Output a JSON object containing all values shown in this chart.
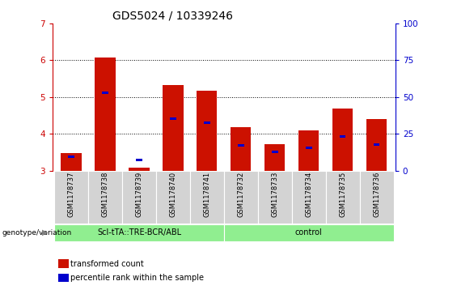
{
  "title": "GDS5024 / 10339246",
  "samples": [
    "GSM1178737",
    "GSM1178738",
    "GSM1178739",
    "GSM1178740",
    "GSM1178741",
    "GSM1178732",
    "GSM1178733",
    "GSM1178734",
    "GSM1178735",
    "GSM1178736"
  ],
  "red_values": [
    3.48,
    6.08,
    3.08,
    5.32,
    5.18,
    4.18,
    3.72,
    4.1,
    4.68,
    4.4
  ],
  "blue_values": [
    3.38,
    5.12,
    3.28,
    4.42,
    4.3,
    3.68,
    3.5,
    3.62,
    3.92,
    3.7
  ],
  "ylim_left": [
    3.0,
    7.0
  ],
  "ylim_right": [
    0,
    100
  ],
  "yticks_left": [
    3,
    4,
    5,
    6,
    7
  ],
  "yticks_right": [
    0,
    25,
    50,
    75,
    100
  ],
  "group1_label": "Scl-tTA::TRE-BCR/ABL",
  "group2_label": "control",
  "group1_indices": [
    0,
    1,
    2,
    3,
    4
  ],
  "group2_indices": [
    5,
    6,
    7,
    8,
    9
  ],
  "genotype_label": "genotype/variation",
  "legend_red": "transformed count",
  "legend_blue": "percentile rank within the sample",
  "bar_baseline": 3.0,
  "group_bg_color": "#90EE90",
  "bar_color_red": "#CC1100",
  "bar_color_blue": "#0000CC",
  "tick_color_left": "#CC0000",
  "tick_color_right": "#0000CC",
  "title_fontsize": 10,
  "axis_bg_color": "#D3D3D3",
  "plot_bg_color": "#FFFFFF",
  "grid_yticks": [
    4,
    5,
    6
  ]
}
